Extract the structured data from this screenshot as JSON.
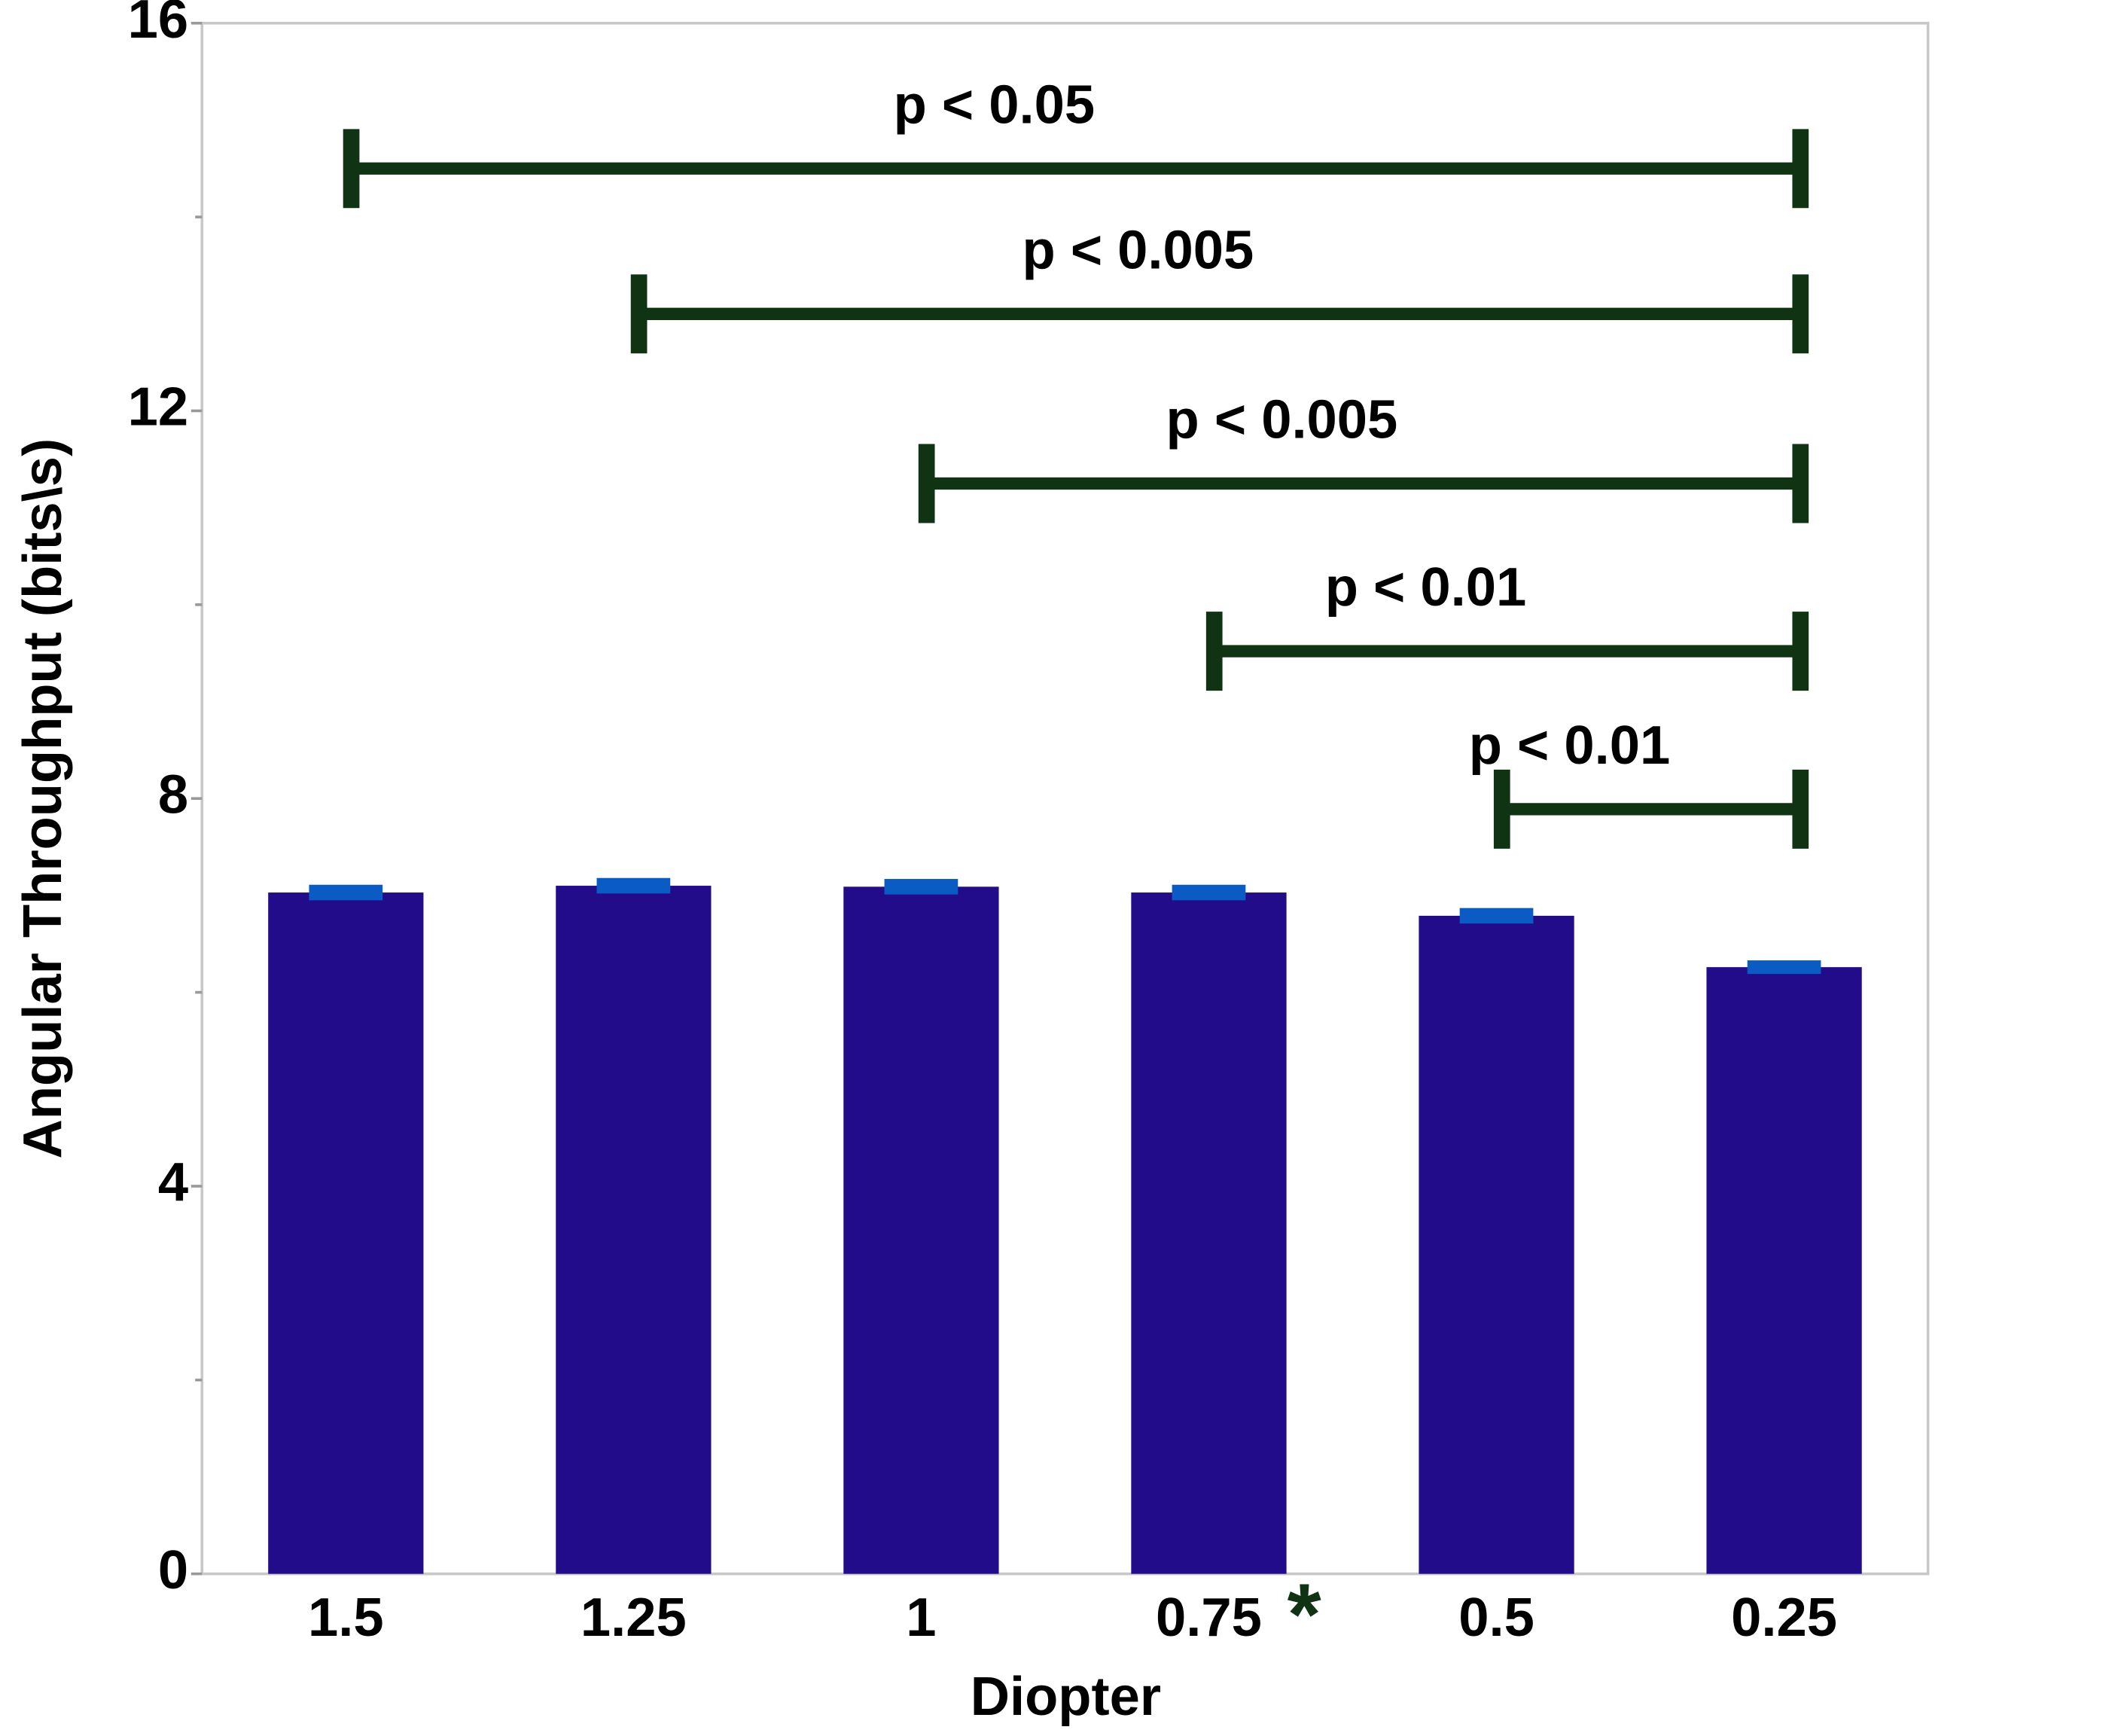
{
  "chart_data": {
    "type": "bar",
    "xlabel": "Diopter",
    "ylabel": "Angular Throughput (bits\\s)",
    "categories": [
      "1.5",
      "1.25",
      "1",
      "0.75",
      "0.5",
      "0.25"
    ],
    "values": [
      7.03,
      7.1,
      7.09,
      7.03,
      6.79,
      6.26
    ],
    "errors": [
      0.08,
      0.08,
      0.08,
      0.08,
      0.08,
      0.07
    ],
    "color": "#230c8a",
    "error_color": "#0a5cc4",
    "ylim": [
      0,
      16
    ],
    "yticks": [
      0,
      4,
      8,
      12,
      16
    ],
    "yminorticks": [
      2,
      6,
      10,
      14
    ],
    "brackets": [
      {
        "label": "p < 0.05",
        "from": "1.5",
        "to": "0.25",
        "y": 14.5
      },
      {
        "label": "p < 0.005",
        "from": "1.25",
        "to": "0.25",
        "y": 13.0
      },
      {
        "label": "p < 0.005",
        "from": "1",
        "to": "0.25",
        "y": 11.25
      },
      {
        "label": "p < 0.01",
        "from": "0.75",
        "to": "0.25",
        "y": 9.52
      },
      {
        "label": "p < 0.01",
        "from": "0.5",
        "to": "0.25",
        "y": 7.89
      }
    ],
    "bracket_color": "#0f3313",
    "category_marks": [
      {
        "text": "*",
        "category": "0.75"
      }
    ]
  }
}
